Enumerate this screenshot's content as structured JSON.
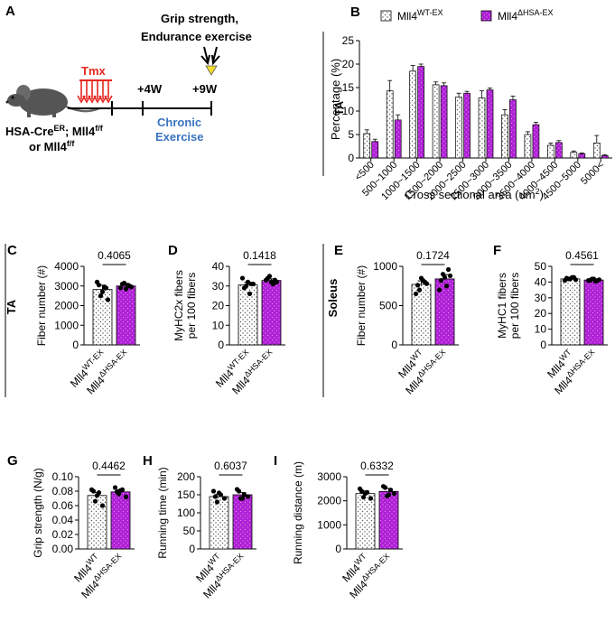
{
  "colors": {
    "wt_fill": "#ffffff",
    "hsa_fill": "#b021d6",
    "tmx_red": "#e8261e",
    "chronic_blue": "#3a73c0",
    "arrow_yellow": "#f4dd2a"
  },
  "schematic": {
    "panel_label": "A",
    "tmx": "Tmx",
    "grip_line1": "Grip strength,",
    "grip_line2": "Endurance exercise",
    "week4": "+4W",
    "week9": "+9W",
    "chronic1": "Chronic",
    "chronic2": "Exercise",
    "genotype1": "HSA-Cre",
    "genotype1_sup": "ER",
    "genotype1_tail": "; Mll4",
    "genotype1_sup2": "f/f",
    "genotype2": "or Mll4",
    "genotype2_sup": "f/f",
    "mouse_icon": "mouse-icon"
  },
  "side_labels": {
    "ta_top": "TA",
    "ta_mid": "TA",
    "soleus": "Soleus"
  },
  "legend": {
    "wt_base": "Mll4",
    "wt_sup": "WT-EX",
    "hsa_base": "Mll4",
    "hsa_sup": "ΔHSA-EX"
  },
  "chart_data": [
    {
      "id": "B",
      "panel_label": "B",
      "type": "bar",
      "ylabel": "Percentage (%)",
      "xlabel": "Cross sectional area (um",
      "xlabel_sup": "2",
      "xlabel_end": ")",
      "ylim": [
        0,
        25
      ],
      "yticks": [
        "0",
        "5",
        "10",
        "15",
        "20",
        "25"
      ],
      "categories": [
        "<500",
        "500~1000",
        "1000~1500",
        "1500~2000",
        "2000~2500",
        "2500~3000",
        "3000~3500",
        "3500~4000",
        "4000~4500",
        "4500~5000",
        "5000<"
      ],
      "series": [
        {
          "name": "Mll4 WT-EX",
          "values": [
            5.2,
            14.3,
            18.5,
            15.6,
            13.0,
            12.8,
            9.2,
            5.0,
            2.7,
            1.2,
            3.2
          ],
          "errors": [
            0.8,
            2.2,
            1.2,
            0.6,
            0.8,
            1.5,
            1.1,
            0.6,
            0.5,
            0.3,
            1.6
          ]
        },
        {
          "name": "Mll4 ΔHSA-EX",
          "values": [
            3.5,
            8.1,
            19.5,
            15.4,
            13.8,
            14.5,
            12.4,
            7.1,
            3.3,
            0.9,
            0.5
          ],
          "errors": [
            0.5,
            1.1,
            0.5,
            0.6,
            0.4,
            0.4,
            0.8,
            0.5,
            0.4,
            0.2,
            0.2
          ]
        }
      ]
    },
    {
      "id": "C",
      "panel_label": "C",
      "type": "bar",
      "ylabel": "Fiber number (#)",
      "ylim": [
        0,
        4000
      ],
      "yticks": [
        "0",
        "1000",
        "2000",
        "3000",
        "4000"
      ],
      "pvalue": "0.4065",
      "cat_wt_base": "Mll4",
      "cat_wt_sup": "WT-EX",
      "cat_hsa_base": "Mll4",
      "cat_hsa_sup": "ΔHSA-EX",
      "values": [
        2820,
        3000
      ],
      "errors": [
        220,
        110
      ],
      "points": [
        [
          3200,
          2500,
          2950,
          2300,
          3050,
          2700,
          2900
        ],
        [
          2900,
          3150,
          3050,
          2950,
          3100,
          2850,
          3000
        ]
      ]
    },
    {
      "id": "D",
      "panel_label": "D",
      "type": "bar",
      "ylabel": "MyHC2x fibers",
      "ylabel2": "per 100 fibers",
      "ylim": [
        0,
        40
      ],
      "yticks": [
        "0",
        "10",
        "20",
        "30",
        "40"
      ],
      "pvalue": "0.1418",
      "cat_wt_base": "Mll4",
      "cat_wt_sup": "WT-EX",
      "cat_hsa_base": "Mll4",
      "cat_hsa_sup": "ΔHSA-EX",
      "values": [
        30.5,
        32.8
      ],
      "errors": [
        1.3,
        0.8
      ],
      "points": [
        [
          34,
          30,
          26,
          31,
          29,
          32,
          31
        ],
        [
          33,
          35,
          31,
          32,
          34,
          32,
          33
        ]
      ]
    },
    {
      "id": "E",
      "panel_label": "E",
      "type": "bar",
      "ylabel": "Fiber number (#)",
      "ylim": [
        0,
        1000
      ],
      "yticks": [
        "0",
        "500",
        "1000"
      ],
      "pvalue": "0.1724",
      "cat_wt_base": "Mll4",
      "cat_wt_sup": "WT",
      "cat_hsa_base": "Mll4",
      "cat_hsa_sup": "ΔHSA-EX",
      "values": [
        770,
        840
      ],
      "errors": [
        45,
        55
      ],
      "points": [
        [
          650,
          700,
          820,
          780,
          760,
          850,
          800
        ],
        [
          700,
          900,
          750,
          880,
          820,
          860,
          960
        ]
      ]
    },
    {
      "id": "F",
      "panel_label": "F",
      "type": "bar",
      "ylabel": "MyHC1 fibers",
      "ylabel2": "per 100 fibers",
      "ylim": [
        0,
        50
      ],
      "yticks": [
        "0",
        "10",
        "20",
        "30",
        "40",
        "50"
      ],
      "pvalue": "0.4561",
      "cat_wt_base": "Mll4",
      "cat_wt_sup": "WT",
      "cat_hsa_base": "Mll4",
      "cat_hsa_sup": "ΔHSA-EX",
      "values": [
        42.0,
        41.3
      ],
      "errors": [
        0.5,
        0.4
      ],
      "points": [
        [
          41,
          42,
          43,
          41.5,
          42.5,
          42,
          43
        ],
        [
          41,
          42,
          40.5,
          41.5,
          41,
          42,
          41
        ]
      ]
    },
    {
      "id": "G",
      "panel_label": "G",
      "type": "bar",
      "ylabel": "Grip strength  (N/g)",
      "ylim": [
        0,
        0.1
      ],
      "yticks": [
        "0.00",
        "0.02",
        "0.04",
        "0.06",
        "0.08",
        "0.10"
      ],
      "pvalue": "0.4462",
      "cat_wt_base": "Mll4",
      "cat_wt_sup": "WT",
      "cat_hsa_base": "Mll4",
      "cat_hsa_sup": "ΔHSA-EX",
      "values": [
        0.074,
        0.079
      ],
      "errors": [
        0.004,
        0.003
      ],
      "points": [
        [
          0.082,
          0.066,
          0.078,
          0.06,
          0.08,
          0.074
        ],
        [
          0.085,
          0.076,
          0.082,
          0.072,
          0.079,
          0.081
        ]
      ]
    },
    {
      "id": "H",
      "panel_label": "H",
      "type": "bar",
      "ylabel": "Running time (min)",
      "ylim": [
        0,
        200
      ],
      "yticks": [
        "0",
        "50",
        "100",
        "150",
        "200"
      ],
      "pvalue": "0.6037",
      "cat_wt_base": "Mll4",
      "cat_wt_sup": "WT",
      "cat_hsa_base": "Mll4",
      "cat_hsa_sup": "ΔHSA-EX",
      "values": [
        145,
        150
      ],
      "errors": [
        6,
        6
      ],
      "points": [
        [
          160,
          130,
          150,
          140,
          145,
          155
        ],
        [
          165,
          140,
          150,
          145,
          160,
          140
        ]
      ]
    },
    {
      "id": "I",
      "panel_label": "I",
      "type": "bar",
      "ylabel": "Running distance (m)",
      "ylim": [
        0,
        3000
      ],
      "yticks": [
        "0",
        "1000",
        "2000",
        "3000"
      ],
      "pvalue": "0.6332",
      "cat_wt_base": "Mll4",
      "cat_wt_sup": "WT",
      "cat_hsa_base": "Mll4",
      "cat_hsa_sup": "ΔHSA-EX",
      "values": [
        2300,
        2390
      ],
      "errors": [
        110,
        120
      ],
      "points": [
        [
          2500,
          2150,
          2350,
          2100,
          2400,
          2300
        ],
        [
          2600,
          2200,
          2450,
          2300,
          2550,
          2250
        ]
      ]
    }
  ]
}
